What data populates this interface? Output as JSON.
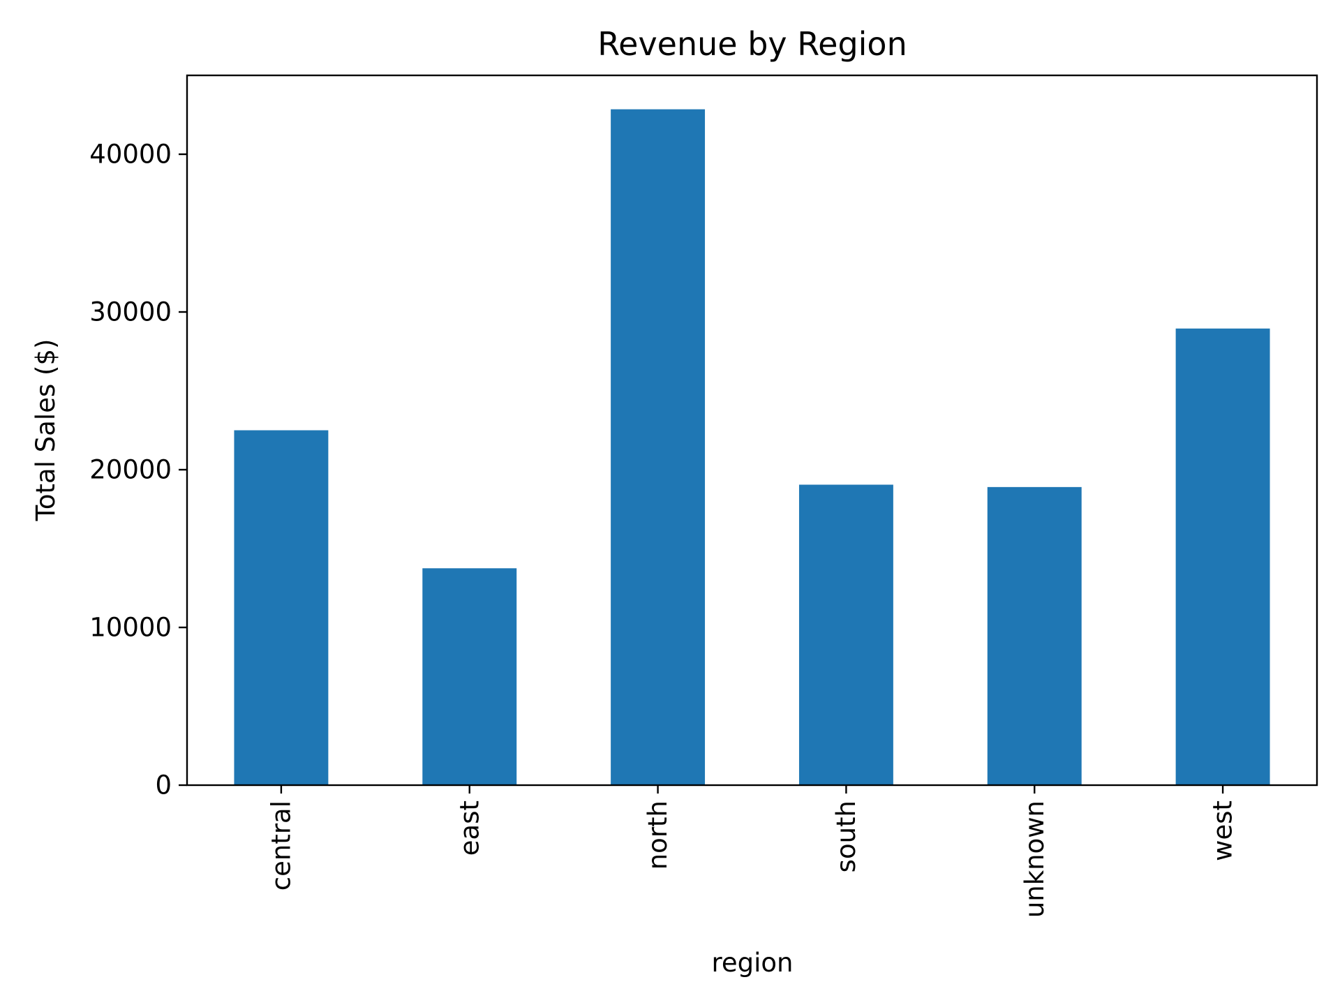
{
  "chart_data": {
    "type": "bar",
    "title": "Revenue by Region",
    "xlabel": "region",
    "ylabel": "Total Sales ($)",
    "categories": [
      "central",
      "east",
      "north",
      "south",
      "unknown",
      "west"
    ],
    "values": [
      22500,
      13750,
      42850,
      19050,
      18900,
      28950
    ],
    "ylim": [
      0,
      45000
    ],
    "yticks": [
      0,
      10000,
      20000,
      30000,
      40000
    ],
    "ytick_labels": [
      "0",
      "10000",
      "20000",
      "30000",
      "40000"
    ],
    "bar_color": "#1f77b4",
    "grid": false,
    "legend": false
  }
}
